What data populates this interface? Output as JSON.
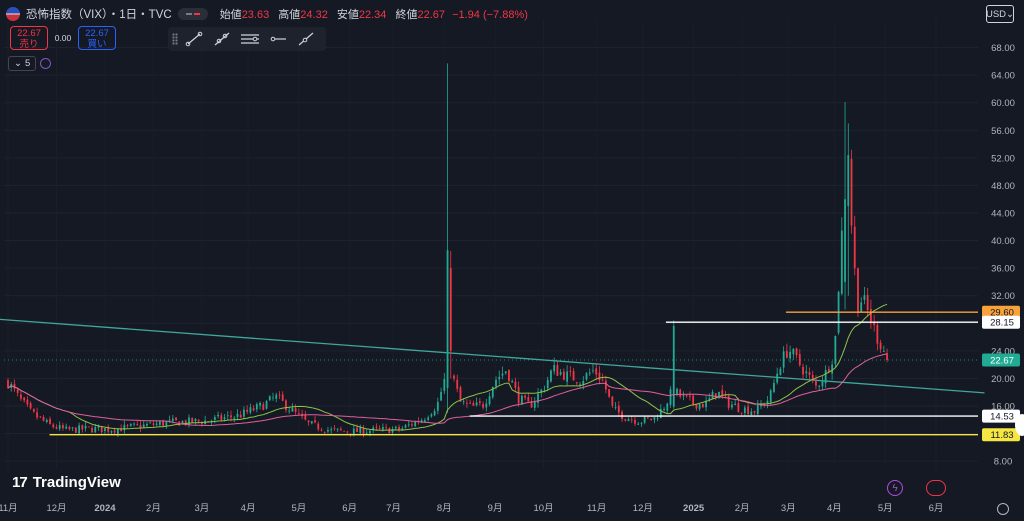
{
  "header": {
    "title": "恐怖指数（VIX）・1日・TVC",
    "ohlc": [
      {
        "key": "始値",
        "value": "23.63"
      },
      {
        "key": "高値",
        "value": "24.32"
      },
      {
        "key": "安値",
        "value": "22.34"
      },
      {
        "key": "終値",
        "value": "22.67"
      },
      {
        "key": "",
        "value": "−1.94 (−7.88%)"
      }
    ],
    "sell_price": "22.67",
    "sell_label": "売り",
    "spread": "0.00",
    "buy_price": "22.67",
    "buy_label": "買い",
    "indicator_count": "5",
    "currency": "USD"
  },
  "branding": {
    "logo_text": "TradingView",
    "logo_mark": "17"
  },
  "icons": [
    "flag-us-icon",
    "trend-line-icon",
    "ray-icon",
    "parallel-channel-icon",
    "horizontal-ray-icon",
    "extended-line-icon",
    "lightning-icon",
    "settings-icon",
    "globe-icon"
  ],
  "colors": {
    "background": "#151924",
    "up": "#22ab94",
    "down": "#f23645",
    "ma_short": "#8bc34a",
    "ma_long": "#e0609b",
    "trendline": "#3ea89c",
    "orange_level": "#f7a23b",
    "yellow_level": "#f5e642",
    "white_level": "#ffffff"
  },
  "chart_data": {
    "type": "candlestick",
    "ylim": [
      7,
      72
    ],
    "y_ticks": [
      "8.00",
      "12.00",
      "16.00",
      "20.00",
      "24.00",
      "28.00",
      "32.00",
      "36.00",
      "40.00",
      "44.00",
      "48.00",
      "52.00",
      "56.00",
      "60.00",
      "64.00",
      "68.00"
    ],
    "x_ticks": [
      {
        "label": "11月",
        "i": 0
      },
      {
        "label": "12月",
        "i": 21
      },
      {
        "label": "2024",
        "i": 42
      },
      {
        "label": "2月",
        "i": 63
      },
      {
        "label": "3月",
        "i": 84
      },
      {
        "label": "4月",
        "i": 104
      },
      {
        "label": "5月",
        "i": 126
      },
      {
        "label": "6月",
        "i": 148
      },
      {
        "label": "7月",
        "i": 167
      },
      {
        "label": "8月",
        "i": 189
      },
      {
        "label": "9月",
        "i": 211
      },
      {
        "label": "10月",
        "i": 232
      },
      {
        "label": "11月",
        "i": 255
      },
      {
        "label": "12月",
        "i": 275
      },
      {
        "label": "2025",
        "i": 297
      },
      {
        "label": "2月",
        "i": 318
      },
      {
        "label": "3月",
        "i": 338
      },
      {
        "label": "4月",
        "i": 358
      },
      {
        "label": "5月",
        "i": 380
      },
      {
        "label": "6月",
        "i": 402
      }
    ],
    "x_total_days": 425,
    "anchors": [
      [
        0,
        19.5
      ],
      [
        5,
        17.0
      ],
      [
        10,
        15.0
      ],
      [
        18,
        13.2
      ],
      [
        25,
        12.5
      ],
      [
        35,
        12.7
      ],
      [
        45,
        12.6
      ],
      [
        55,
        13.0
      ],
      [
        70,
        13.6
      ],
      [
        85,
        13.8
      ],
      [
        100,
        14.6
      ],
      [
        110,
        16.0
      ],
      [
        116,
        17.3
      ],
      [
        122,
        15.6
      ],
      [
        130,
        13.4
      ],
      [
        140,
        12.4
      ],
      [
        150,
        12.3
      ],
      [
        160,
        12.5
      ],
      [
        170,
        12.6
      ],
      [
        180,
        14.2
      ],
      [
        186,
        16.2
      ],
      [
        191,
        22.0
      ],
      [
        196,
        16.5
      ],
      [
        201,
        15.8
      ],
      [
        206,
        16.2
      ],
      [
        211,
        19.8
      ],
      [
        216,
        21.3
      ],
      [
        221,
        17.2
      ],
      [
        226,
        16.0
      ],
      [
        232,
        18.6
      ],
      [
        236,
        21.4
      ],
      [
        242,
        20.4
      ],
      [
        248,
        19.8
      ],
      [
        254,
        21.2
      ],
      [
        258,
        19.4
      ],
      [
        262,
        15.5
      ],
      [
        268,
        14.3
      ],
      [
        274,
        13.8
      ],
      [
        280,
        14.2
      ],
      [
        284,
        15.8
      ],
      [
        288,
        18.3
      ],
      [
        292,
        17.2
      ],
      [
        297,
        16.4
      ],
      [
        302,
        16.2
      ],
      [
        307,
        18.1
      ],
      [
        312,
        16.4
      ],
      [
        318,
        15.6
      ],
      [
        324,
        15.3
      ],
      [
        330,
        17.2
      ],
      [
        334,
        21.8
      ],
      [
        338,
        24.3
      ],
      [
        342,
        22.5
      ],
      [
        346,
        20.6
      ],
      [
        350,
        18.8
      ],
      [
        354,
        20.6
      ],
      [
        358,
        23.8
      ],
      [
        362,
        45.2
      ],
      [
        364,
        52.4
      ],
      [
        366,
        38.5
      ],
      [
        368,
        30.8
      ],
      [
        370,
        31.6
      ],
      [
        373,
        29.2
      ],
      [
        376,
        26.4
      ],
      [
        379,
        24.3
      ],
      [
        381,
        23.0
      ]
    ],
    "spikes": [
      {
        "i": 191,
        "high": 65.7,
        "low": 15.0,
        "open": 18.6,
        "close": 38.6
      },
      {
        "i": 192,
        "high": 38.5,
        "low": 20.0,
        "open": 36.0,
        "close": 24.0
      },
      {
        "i": 289,
        "high": 28.4,
        "low": 15.6,
        "open": 15.9,
        "close": 27.6
      },
      {
        "i": 363,
        "high": 60.1,
        "low": 30.0,
        "open": 34.0,
        "close": 46.0
      },
      {
        "i": 364,
        "high": 57.0,
        "low": 32.0,
        "open": 45.0,
        "close": 52.4
      }
    ],
    "last": {
      "close": 22.67,
      "open": 23.63,
      "high": 24.32,
      "low": 22.34
    },
    "ma_periods": [
      20,
      50
    ],
    "trendline": {
      "from": {
        "i": -5,
        "y": 28.6
      },
      "to": {
        "i": 423,
        "y": 17.9
      }
    },
    "levels": [
      {
        "value": 29.6,
        "label": "29.60",
        "color": "orange",
        "from_i": 337
      },
      {
        "value": 28.15,
        "label": "28.15",
        "color": "white",
        "from_i": 285
      },
      {
        "value": 14.53,
        "label": "14.53",
        "color": "white",
        "from_i": 200
      },
      {
        "value": 11.83,
        "label": "11.83",
        "color": "yellow",
        "from_i": 18
      }
    ],
    "current_price_label": "22.67"
  }
}
